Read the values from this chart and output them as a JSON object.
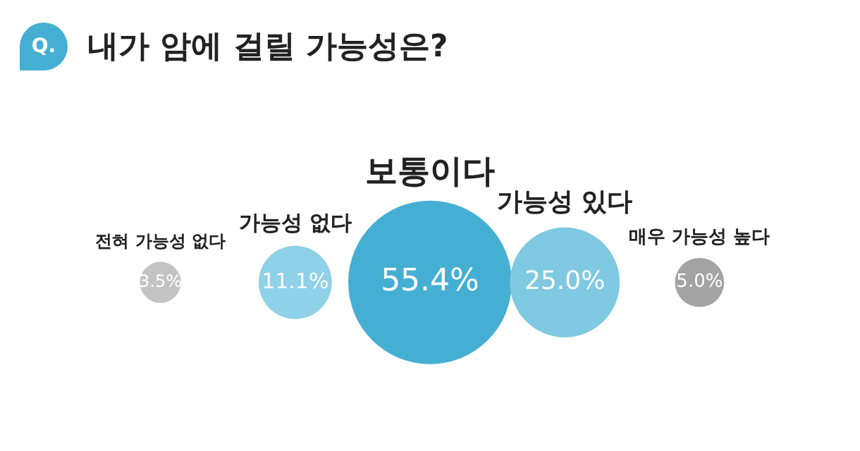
{
  "chart_data": {
    "type": "other",
    "title": "내가 암에 걸릴 가능성은?",
    "annotations": [
      "Q."
    ],
    "categories": [
      "전혀 가능성 없다",
      "가능성 없다",
      "보통이다",
      "가능성 있다",
      "매우 가능성 높다"
    ],
    "values": [
      3.5,
      11.1,
      55.4,
      25.0,
      5.0
    ],
    "value_labels": [
      "3.5%",
      "11.1%",
      "55.4%",
      "25.0%",
      "5.0%"
    ],
    "colors": [
      "#c4c4c4",
      "#8fd1e6",
      "#45afd3",
      "#7fc9e2",
      "#a3a3a3"
    ]
  }
}
